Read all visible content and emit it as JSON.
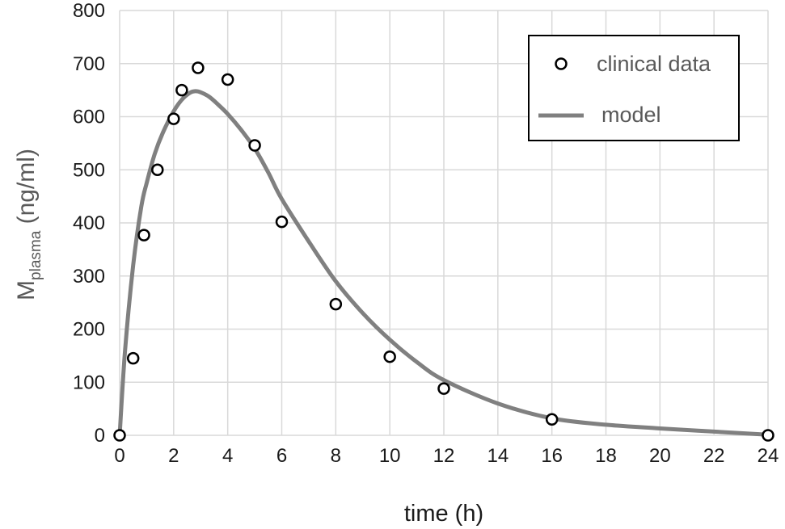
{
  "chart_data": {
    "type": "scatter",
    "title": "",
    "xlabel": "time (h)",
    "ylabel": {
      "main": "M",
      "subscript": "plasma",
      "unit": " (ng/ml)"
    },
    "xlim": [
      0,
      24
    ],
    "ylim": [
      0,
      800
    ],
    "x_ticks": [
      0,
      2,
      4,
      6,
      8,
      10,
      12,
      14,
      16,
      18,
      20,
      22,
      24
    ],
    "y_ticks": [
      0,
      100,
      200,
      300,
      400,
      500,
      600,
      700,
      800
    ],
    "grid": true,
    "legend_position": "top-right",
    "series": [
      {
        "name": "clinical data",
        "kind": "markers",
        "marker": "open-circle",
        "color": "#000000",
        "x": [
          0,
          0.5,
          0.9,
          1.4,
          2.0,
          2.3,
          2.9,
          4.0,
          5.0,
          6.0,
          8.0,
          10.0,
          12.0,
          16.0,
          24.0
        ],
        "y": [
          0,
          145,
          377,
          500,
          596,
          650,
          692,
          670,
          546,
          402,
          247,
          148,
          88,
          30,
          0
        ]
      },
      {
        "name": "model",
        "kind": "line",
        "color": "#808080",
        "x": [
          0,
          0.2,
          0.5,
          0.8,
          1.0,
          1.3,
          1.6,
          2.0,
          2.3,
          2.6,
          2.8,
          3.0,
          3.3,
          3.6,
          4.0,
          4.5,
          5.0,
          5.5,
          6.0,
          7.0,
          8.0,
          9.0,
          10.0,
          11.0,
          12.0,
          14.0,
          16.0,
          18.0,
          20.0,
          22.0,
          24.0
        ],
        "y": [
          0,
          160,
          320,
          430,
          475,
          530,
          570,
          610,
          632,
          645,
          648,
          646,
          638,
          625,
          605,
          575,
          540,
          495,
          445,
          365,
          290,
          230,
          180,
          138,
          104,
          60,
          32,
          20,
          13,
          7,
          1
        ]
      }
    ]
  }
}
